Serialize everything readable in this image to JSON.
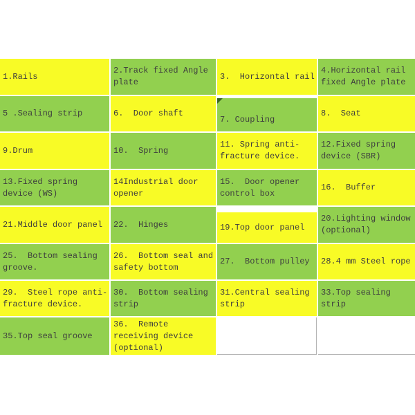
{
  "colors": {
    "yellow": "#f8fb26",
    "green": "#92d04f",
    "text": "#3e3e3e",
    "marker": "#39641f",
    "border": "#b6b6b6",
    "background": "#ffffff"
  },
  "legend_table": {
    "rows": [
      {
        "cells": [
          {
            "label": "1.Rails",
            "color": "yellow"
          },
          {
            "label": "2.Track fixed Angle\nplate",
            "color": "green"
          },
          {
            "label": "3.  Horizontal rail",
            "color": "yellow"
          },
          {
            "label": "4.Horizontal rail\nfixed Angle plate",
            "color": "green"
          }
        ]
      },
      {
        "cells": [
          {
            "label": "5 .Sealing strip",
            "color": "green"
          },
          {
            "label": "6.  Door shaft",
            "color": "yellow"
          },
          {
            "label": "7. Coupling",
            "color": "green",
            "corner_marker": true
          },
          {
            "label": "8.  Seat",
            "color": "yellow"
          }
        ]
      },
      {
        "cells": [
          {
            "label": "9.Drum",
            "color": "yellow"
          },
          {
            "label": "10.  Spring",
            "color": "green"
          },
          {
            "label": "11. Spring anti-\nfracture device.",
            "color": "yellow"
          },
          {
            "label": "12.Fixed spring\ndevice (SBR)",
            "color": "green"
          }
        ]
      },
      {
        "cells": [
          {
            "label": "13.Fixed spring\ndevice (WS)",
            "color": "green"
          },
          {
            "label": "14Industrial door\nopener",
            "color": "yellow"
          },
          {
            "label": "15.  Door opener\ncontrol box",
            "color": "green"
          },
          {
            "label": "16.  Buffer",
            "color": "yellow"
          }
        ]
      },
      {
        "cells": [
          {
            "label": "21.Middle door panel",
            "color": "yellow"
          },
          {
            "label": "22.  Hinges",
            "color": "green"
          },
          {
            "label": "19.Top door panel",
            "color": "yellow"
          },
          {
            "label": "20.Lighting window\n(optional)",
            "color": "green"
          }
        ]
      },
      {
        "cells": [
          {
            "label": "25.  Bottom sealing\ngroove.",
            "color": "green"
          },
          {
            "label": "26.  Bottom seal and\nsafety bottom",
            "color": "yellow"
          },
          {
            "label": "27.  Bottom pulley",
            "color": "green"
          },
          {
            "label": "28.4 mm Steel rope",
            "color": "yellow"
          }
        ]
      },
      {
        "cells": [
          {
            "label": "29.  Steel rope anti-\nfracture device.",
            "color": "yellow"
          },
          {
            "label": "30.  Bottom sealing\nstrip",
            "color": "green"
          },
          {
            "label": "31.Central sealing\nstrip",
            "color": "yellow"
          },
          {
            "label": "33.Top sealing\nstrip",
            "color": "green"
          }
        ]
      },
      {
        "cells": [
          {
            "label": "35.Top seal groove",
            "color": "green"
          },
          {
            "label": "36.  Remote\nreceiving device\n(optional)",
            "color": "yellow"
          },
          {
            "label": "",
            "color": "white"
          },
          {
            "label": "",
            "color": "white"
          }
        ]
      }
    ]
  }
}
